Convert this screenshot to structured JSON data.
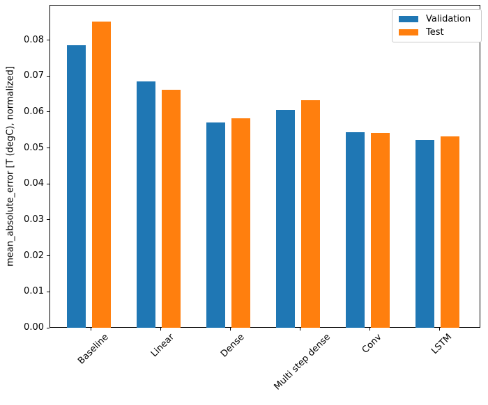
{
  "figure": {
    "background": "#ffffff",
    "text_color": "#000000"
  },
  "chart_data": {
    "type": "bar",
    "categories": [
      "Baseline",
      "Linear",
      "Dense",
      "Multi step dense",
      "Conv",
      "LSTM"
    ],
    "series": [
      {
        "name": "Validation",
        "color": "#1f77b4",
        "values": [
          0.0785,
          0.0685,
          0.057,
          0.0605,
          0.0544,
          0.0522
        ]
      },
      {
        "name": "Test",
        "color": "#ff7f0e",
        "values": [
          0.0852,
          0.0661,
          0.0582,
          0.0632,
          0.0542,
          0.0532
        ]
      }
    ],
    "title": "",
    "xlabel": "",
    "ylabel": "mean_absolute_error [T (degC), normalized]",
    "ylim": [
      0,
      0.0898
    ],
    "yticks": [
      0,
      0.01,
      0.02,
      0.03,
      0.04,
      0.05,
      0.06,
      0.07,
      0.08
    ],
    "ytick_labels": [
      "0.00",
      "0.01",
      "0.02",
      "0.03",
      "0.04",
      "0.05",
      "0.06",
      "0.07",
      "0.08"
    ],
    "xtick_rotation": 45,
    "grid": false,
    "legend": {
      "position": "upper right",
      "entries": [
        "Validation",
        "Test"
      ]
    }
  }
}
